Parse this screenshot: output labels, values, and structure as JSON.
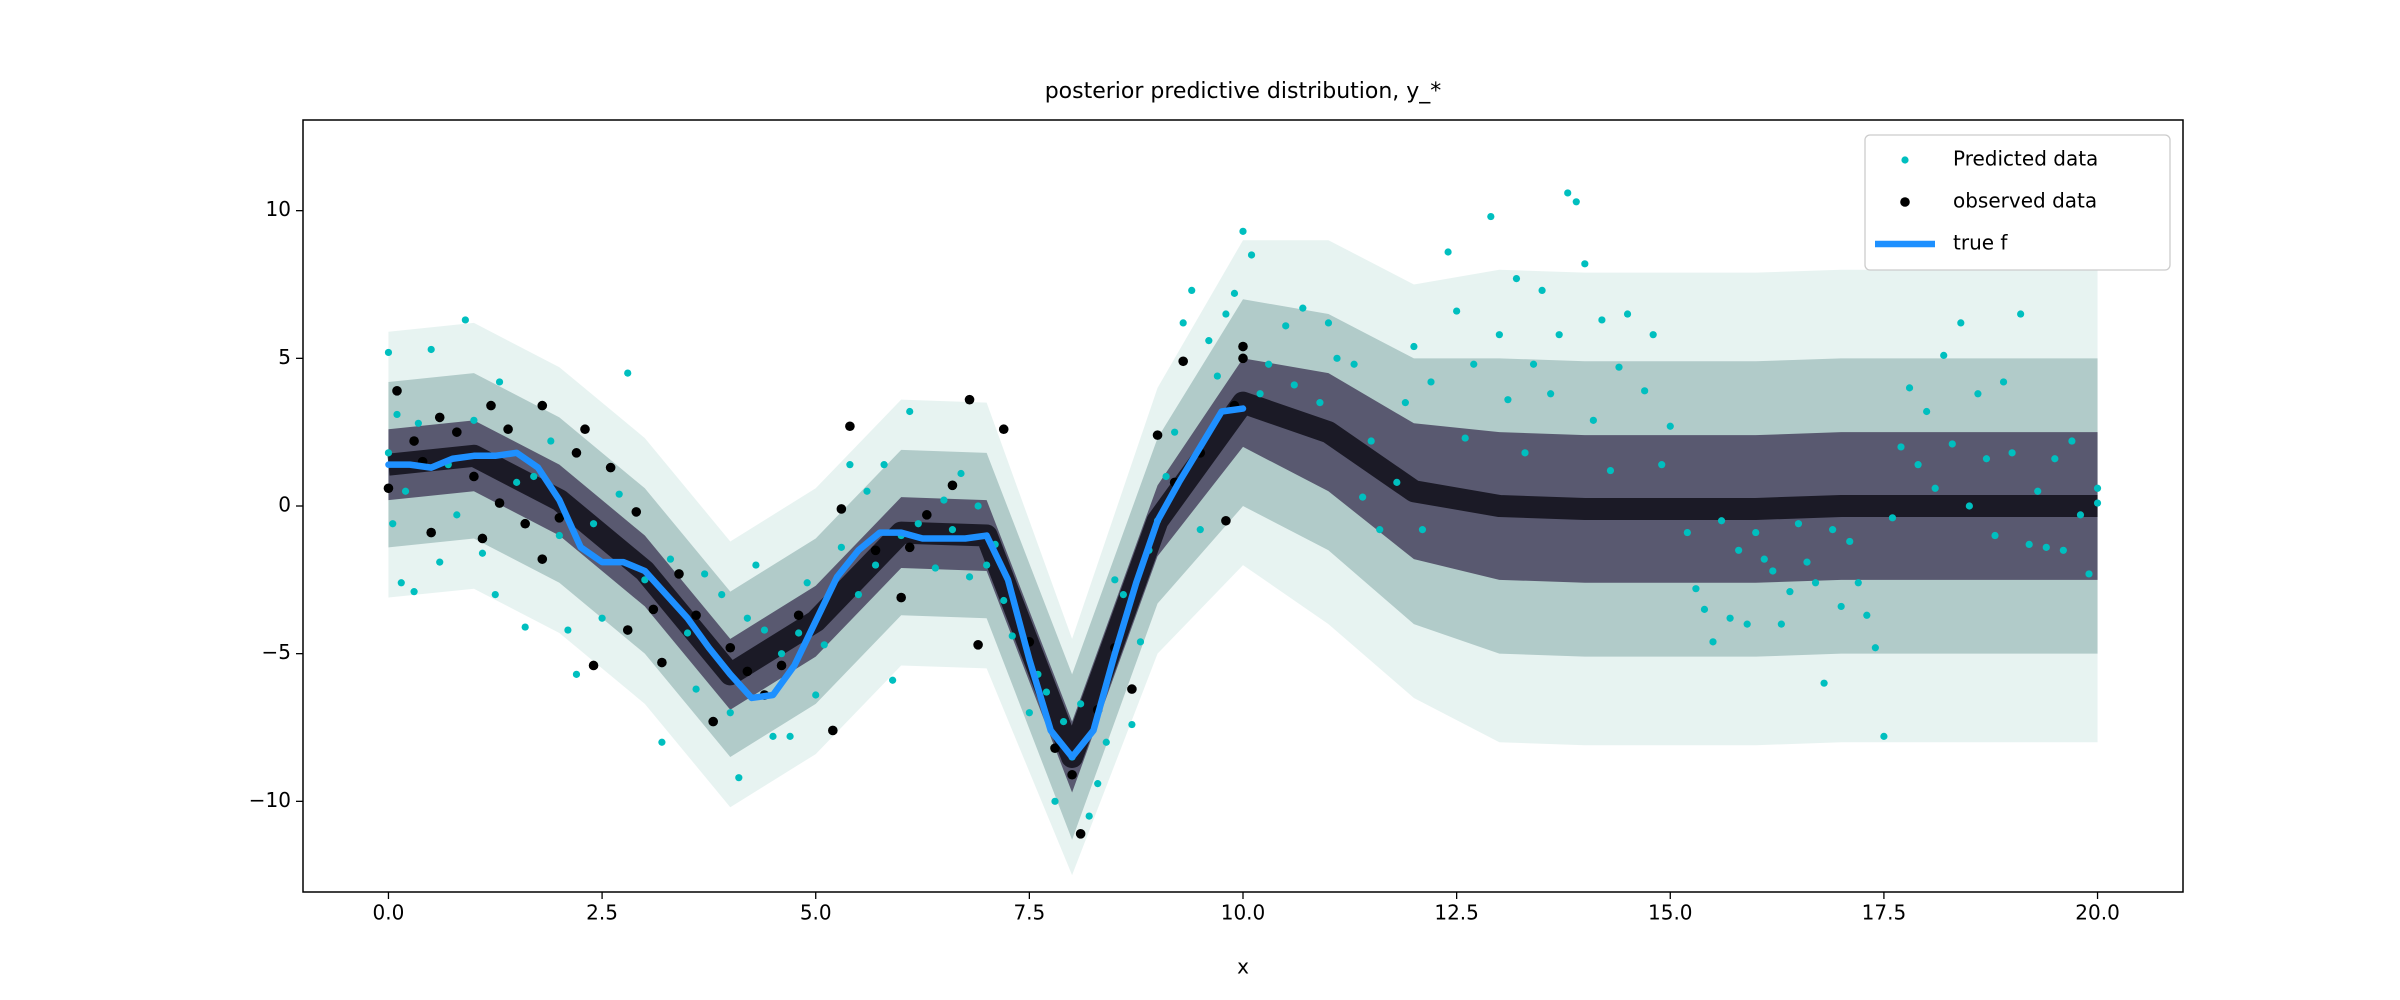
{
  "chart_data": {
    "type": "scatter",
    "title": "posterior predictive distribution, y_*",
    "x_label": "x",
    "xlim": [
      -1,
      21
    ],
    "ylim": [
      -13.07,
      13.07
    ],
    "xticks": [
      {
        "value": 0,
        "label": "0.0"
      },
      2.5,
      {
        "value": 5,
        "label": "5.0"
      },
      7.5,
      {
        "value": 10,
        "label": "10.0"
      },
      12.5,
      {
        "value": 15,
        "label": "15.0"
      },
      17.5,
      {
        "value": 20,
        "label": "20.0"
      }
    ],
    "yticks": [
      {
        "value": -10,
        "label": "−10"
      },
      {
        "value": -5,
        "label": "−5"
      },
      0,
      5,
      10
    ],
    "legend": "upper right",
    "posterior": {
      "x": [
        0,
        1,
        2,
        3,
        4,
        5,
        6,
        7,
        8,
        9,
        10,
        11,
        12,
        13,
        14,
        15,
        16,
        17,
        18,
        19,
        20
      ],
      "mean": [
        1.4,
        1.7,
        0.2,
        -2.2,
        -5.7,
        -3.9,
        -0.9,
        -1.0,
        -8.5,
        -0.5,
        3.5,
        2.5,
        0.5,
        0,
        -0.1,
        -0.1,
        -0.1,
        0,
        0,
        0,
        0
      ],
      "mean_color": "#0b0a14",
      "bands": [
        {
          "color": "#e3f1ef",
          "upper": [
            5.9,
            6.2,
            4.7,
            2.3,
            -1.2,
            0.6,
            3.6,
            3.5,
            -4.5,
            4.0,
            9.0,
            9.0,
            7.5,
            8,
            7.9,
            7.9,
            7.9,
            8,
            8,
            8,
            8
          ],
          "lower": [
            -3.1,
            -2.8,
            -4.3,
            -6.7,
            -10.2,
            -8.4,
            -5.4,
            -5.5,
            -12.5,
            -5.0,
            -2.0,
            -4.0,
            -6.5,
            -8,
            -8.1,
            -8.1,
            -8.1,
            -8,
            -8,
            -8,
            -8
          ]
        },
        {
          "color": "#a7c3c2",
          "upper": [
            4.2,
            4.5,
            3.0,
            0.6,
            -2.9,
            -1.1,
            1.9,
            1.8,
            -5.7,
            2.3,
            7.0,
            6.5,
            5.0,
            5,
            4.9,
            4.9,
            4.9,
            5,
            5,
            5,
            5
          ],
          "lower": [
            -1.4,
            -1.1,
            -2.6,
            -5.0,
            -8.5,
            -6.7,
            -3.7,
            -3.8,
            -11.3,
            -3.3,
            0.0,
            -1.5,
            -4.0,
            -5,
            -5.1,
            -5.1,
            -5.1,
            -5,
            -5,
            -5,
            -5
          ]
        },
        {
          "color": "#4a4560",
          "upper": [
            2.6,
            2.9,
            1.4,
            -1.0,
            -4.5,
            -2.7,
            0.3,
            0.2,
            -7.3,
            0.7,
            5.0,
            4.5,
            2.8,
            2.5,
            2.4,
            2.4,
            2.4,
            2.5,
            2.5,
            2.5,
            2.5
          ],
          "lower": [
            0.2,
            0.5,
            -1.0,
            -3.4,
            -6.9,
            -5.1,
            -2.1,
            -2.2,
            -9.7,
            -1.7,
            2.0,
            0.5,
            -1.8,
            -2.5,
            -2.6,
            -2.6,
            -2.6,
            -2.5,
            -2.5,
            -2.5,
            -2.5
          ]
        }
      ]
    },
    "series": [
      {
        "name": "Predicted data",
        "type": "scatter",
        "color": "#00bfbf",
        "x": [
          0.0,
          0.0,
          0.05,
          0.1,
          0.15,
          0.2,
          0.3,
          0.35,
          0.5,
          0.6,
          0.7,
          0.8,
          0.9,
          1.0,
          1.1,
          1.25,
          1.3,
          1.5,
          1.6,
          1.7,
          1.9,
          2.0,
          2.1,
          2.2,
          2.4,
          2.5,
          2.7,
          2.8,
          3.0,
          3.2,
          3.3,
          3.5,
          3.6,
          3.7,
          3.9,
          4.0,
          4.1,
          4.2,
          4.3,
          4.4,
          4.5,
          4.6,
          4.7,
          4.8,
          4.9,
          5.0,
          5.1,
          5.3,
          5.4,
          5.5,
          5.6,
          5.7,
          5.8,
          5.9,
          6.0,
          6.1,
          6.2,
          6.4,
          6.5,
          6.6,
          6.7,
          6.8,
          6.9,
          7.0,
          7.1,
          7.2,
          7.3,
          7.5,
          7.6,
          7.7,
          7.8,
          7.9,
          8.0,
          8.1,
          8.2,
          8.3,
          8.4,
          8.5,
          8.6,
          8.7,
          8.8,
          8.9,
          9.0,
          9.1,
          9.2,
          9.3,
          9.4,
          9.5,
          9.6,
          9.7,
          9.8,
          9.9,
          10.0,
          10.1,
          10.2,
          10.3,
          10.5,
          10.6,
          10.7,
          10.9,
          11.0,
          11.1,
          11.3,
          11.4,
          11.5,
          11.6,
          11.8,
          11.9,
          12.0,
          12.1,
          12.2,
          12.4,
          12.5,
          12.6,
          12.7,
          12.9,
          13.0,
          13.1,
          13.2,
          13.3,
          13.4,
          13.5,
          13.6,
          13.7,
          13.8,
          13.9,
          14.0,
          14.1,
          14.2,
          14.3,
          14.4,
          14.5,
          14.7,
          14.8,
          14.9,
          15.0,
          15.2,
          15.3,
          15.4,
          15.5,
          15.6,
          15.7,
          15.8,
          15.9,
          16.0,
          16.1,
          16.2,
          16.3,
          16.4,
          16.5,
          16.6,
          16.7,
          16.8,
          16.9,
          17.0,
          17.1,
          17.2,
          17.3,
          17.4,
          17.5,
          17.6,
          17.7,
          17.8,
          17.9,
          18.0,
          18.1,
          18.2,
          18.3,
          18.4,
          18.5,
          18.6,
          18.7,
          18.8,
          18.9,
          19.0,
          19.1,
          19.2,
          19.3,
          19.4,
          19.5,
          19.6,
          19.7,
          19.8,
          19.9,
          20.0,
          20.0
        ],
        "values": [
          5.2,
          1.8,
          -0.6,
          3.1,
          -2.6,
          0.5,
          -2.9,
          2.8,
          5.3,
          -1.9,
          1.4,
          -0.3,
          6.3,
          2.9,
          -1.6,
          -3.0,
          4.2,
          0.8,
          -4.1,
          1.0,
          2.2,
          -1.0,
          -4.2,
          -5.7,
          -0.6,
          -3.8,
          0.4,
          4.5,
          -2.5,
          -8.0,
          -1.8,
          -4.3,
          -6.2,
          -2.3,
          -3.0,
          -7.0,
          -9.2,
          -3.8,
          -2.0,
          -4.2,
          -7.8,
          -5.0,
          -7.8,
          -4.3,
          -2.6,
          -6.4,
          -4.7,
          -1.4,
          1.4,
          -3.0,
          0.5,
          -2.0,
          1.4,
          -5.9,
          -1.0,
          3.2,
          -0.6,
          -2.1,
          0.2,
          -0.8,
          1.1,
          -2.4,
          0.0,
          -2.0,
          -1.3,
          -3.2,
          -4.4,
          -7.0,
          -5.7,
          -6.3,
          -10.0,
          -7.3,
          -8.5,
          -6.7,
          -10.5,
          -9.4,
          -8.0,
          -2.5,
          -3.0,
          -7.4,
          -4.6,
          -1.5,
          -0.5,
          1.0,
          2.5,
          6.2,
          7.3,
          -0.8,
          5.6,
          4.4,
          6.5,
          7.2,
          9.3,
          8.5,
          3.8,
          4.8,
          6.1,
          4.1,
          6.7,
          3.5,
          6.2,
          5.0,
          4.8,
          0.3,
          2.2,
          -0.8,
          0.8,
          3.5,
          5.4,
          -0.8,
          4.2,
          8.6,
          6.6,
          2.3,
          4.8,
          9.8,
          5.8,
          3.6,
          7.7,
          1.8,
          4.8,
          7.3,
          3.8,
          5.8,
          10.6,
          10.3,
          8.2,
          2.9,
          6.3,
          1.2,
          4.7,
          6.5,
          3.9,
          5.8,
          1.4,
          2.7,
          -0.9,
          -2.8,
          -3.5,
          -4.6,
          -0.5,
          -3.8,
          -1.5,
          -4.0,
          -0.9,
          -1.8,
          -2.2,
          -4.0,
          -2.9,
          -0.6,
          -1.9,
          -2.6,
          -6.0,
          -0.8,
          -3.4,
          -1.2,
          -2.6,
          -3.7,
          -4.8,
          -7.8,
          -0.4,
          2.0,
          4.0,
          1.4,
          3.2,
          0.6,
          5.1,
          2.1,
          6.2,
          0.0,
          3.8,
          1.6,
          -1.0,
          4.2,
          1.8,
          6.5,
          -1.3,
          0.5,
          -1.4,
          1.6,
          -1.5,
          2.2,
          -0.3,
          -2.3,
          0.6,
          0.1
        ]
      },
      {
        "name": "observed data",
        "type": "scatter",
        "color": "#000000",
        "x": [
          0.0,
          0.1,
          0.3,
          0.4,
          0.5,
          0.6,
          0.8,
          1.0,
          1.1,
          1.2,
          1.3,
          1.4,
          1.6,
          1.8,
          1.8,
          2.0,
          2.2,
          2.3,
          2.4,
          2.6,
          2.8,
          2.9,
          3.1,
          3.2,
          3.4,
          3.6,
          3.8,
          4.0,
          4.2,
          4.4,
          4.6,
          4.8,
          5.2,
          5.3,
          5.4,
          5.7,
          6.0,
          6.1,
          6.3,
          6.6,
          6.8,
          6.9,
          7.2,
          7.5,
          7.8,
          8.0,
          8.1,
          8.3,
          8.5,
          8.7,
          9.0,
          9.2,
          9.3,
          9.5,
          9.8,
          9.9,
          10.0,
          10.0
        ],
        "values": [
          0.6,
          3.9,
          2.2,
          1.5,
          -0.9,
          3.0,
          2.5,
          1.0,
          -1.1,
          3.4,
          0.1,
          2.6,
          -0.6,
          -1.8,
          3.4,
          -0.4,
          1.8,
          2.6,
          -5.4,
          1.3,
          -4.2,
          -0.2,
          -3.5,
          -5.3,
          -2.3,
          -3.7,
          -7.3,
          -4.8,
          -5.6,
          -6.4,
          -5.4,
          -3.7,
          -7.6,
          -0.1,
          2.7,
          -1.5,
          -3.1,
          -1.4,
          -0.3,
          0.7,
          3.6,
          -4.7,
          2.6,
          -4.6,
          -8.2,
          -9.1,
          -11.1,
          -6.9,
          -4.8,
          -6.2,
          2.4,
          0.8,
          4.9,
          1.8,
          -0.5,
          3.4,
          5.0,
          5.4
        ]
      },
      {
        "name": "true f",
        "type": "line",
        "color": "#1e90ff",
        "x": [
          0,
          0.25,
          0.5,
          0.75,
          1.0,
          1.25,
          1.5,
          1.75,
          2.0,
          2.25,
          2.5,
          2.75,
          3.0,
          3.25,
          3.5,
          3.75,
          4.0,
          4.25,
          4.5,
          4.75,
          5.0,
          5.25,
          5.5,
          5.75,
          6.0,
          6.25,
          6.5,
          6.75,
          7.0,
          7.25,
          7.5,
          7.75,
          8.0,
          8.25,
          8.5,
          8.75,
          9.0,
          9.25,
          9.5,
          9.75,
          10.0
        ],
        "values": [
          1.4,
          1.4,
          1.3,
          1.6,
          1.7,
          1.7,
          1.8,
          1.3,
          0.2,
          -1.4,
          -1.9,
          -1.9,
          -2.2,
          -3.0,
          -3.8,
          -4.8,
          -5.7,
          -6.5,
          -6.4,
          -5.4,
          -3.9,
          -2.4,
          -1.5,
          -0.9,
          -0.9,
          -1.1,
          -1.1,
          -1.1,
          -1.0,
          -2.5,
          -5.2,
          -7.6,
          -8.5,
          -7.6,
          -5.0,
          -2.6,
          -0.5,
          0.8,
          2.0,
          3.2,
          3.3
        ]
      }
    ]
  }
}
